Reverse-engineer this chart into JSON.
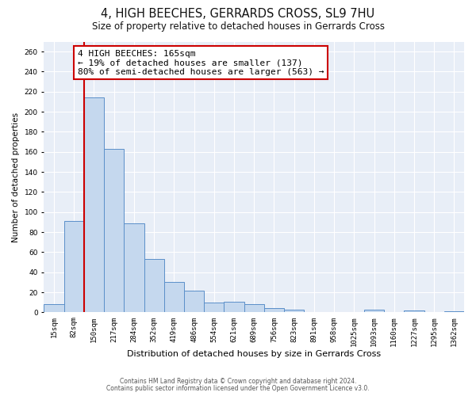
{
  "title": "4, HIGH BEECHES, GERRARDS CROSS, SL9 7HU",
  "subtitle": "Size of property relative to detached houses in Gerrards Cross",
  "xlabel": "Distribution of detached houses by size in Gerrards Cross",
  "ylabel": "Number of detached properties",
  "bin_labels": [
    "15sqm",
    "82sqm",
    "150sqm",
    "217sqm",
    "284sqm",
    "352sqm",
    "419sqm",
    "486sqm",
    "554sqm",
    "621sqm",
    "689sqm",
    "756sqm",
    "823sqm",
    "891sqm",
    "958sqm",
    "1025sqm",
    "1093sqm",
    "1160sqm",
    "1227sqm",
    "1295sqm",
    "1362sqm"
  ],
  "bar_heights": [
    8,
    91,
    214,
    163,
    89,
    53,
    30,
    22,
    10,
    11,
    8,
    4,
    3,
    0,
    0,
    0,
    3,
    0,
    2,
    0,
    1
  ],
  "bar_color": "#c5d8ee",
  "bar_edge_color": "#5b8fc9",
  "bar_linewidth": 0.7,
  "vline_x_index": 2,
  "vline_color": "#cc0000",
  "vline_linewidth": 1.5,
  "ylim": [
    0,
    270
  ],
  "yticks": [
    0,
    20,
    40,
    60,
    80,
    100,
    120,
    140,
    160,
    180,
    200,
    220,
    240,
    260
  ],
  "annotation_title": "4 HIGH BEECHES: 165sqm",
  "annotation_line1": "← 19% of detached houses are smaller (137)",
  "annotation_line2": "80% of semi-detached houses are larger (563) →",
  "annotation_box_facecolor": "#ffffff",
  "annotation_box_edgecolor": "#cc0000",
  "footer1": "Contains HM Land Registry data © Crown copyright and database right 2024.",
  "footer2": "Contains public sector information licensed under the Open Government Licence v3.0.",
  "plot_bg_color": "#e8eef7",
  "fig_bg_color": "#ffffff",
  "grid_color": "#ffffff",
  "title_fontsize": 10.5,
  "subtitle_fontsize": 8.5,
  "xlabel_fontsize": 8,
  "ylabel_fontsize": 7.5,
  "tick_fontsize": 6.5,
  "footer_fontsize": 5.5,
  "annot_fontsize": 8
}
